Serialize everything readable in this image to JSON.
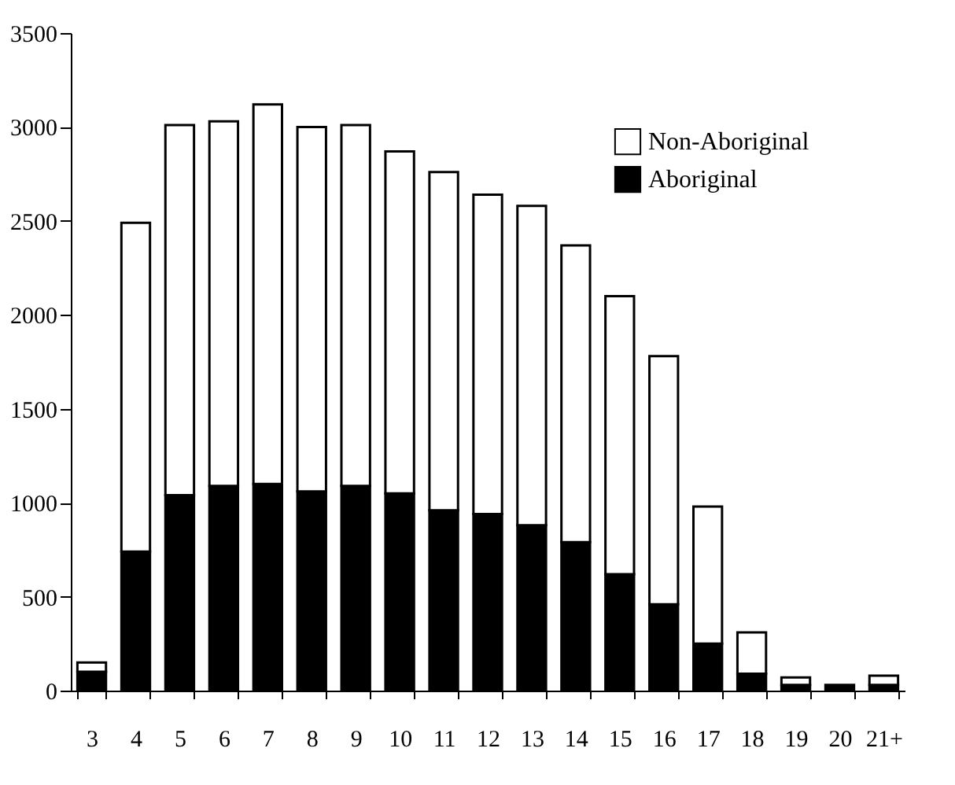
{
  "chart_data": {
    "type": "bar",
    "stacked": true,
    "categories": [
      "3",
      "4",
      "5",
      "6",
      "7",
      "8",
      "9",
      "10",
      "11",
      "12",
      "13",
      "14",
      "15",
      "16",
      "17",
      "18",
      "19",
      "20",
      "21+"
    ],
    "series": [
      {
        "name": "Aboriginal",
        "color": "#000000",
        "values": [
          100,
          740,
          1040,
          1090,
          1100,
          1060,
          1090,
          1050,
          960,
          940,
          880,
          790,
          620,
          460,
          250,
          90,
          30,
          30,
          30
        ]
      },
      {
        "name": "Non-Aboriginal",
        "color": "#ffffff",
        "values": [
          50,
          1750,
          1970,
          1940,
          2020,
          1940,
          1920,
          1820,
          1800,
          1700,
          1700,
          1580,
          1480,
          1320,
          730,
          220,
          40,
          null,
          50
        ]
      }
    ],
    "ylim": [
      0,
      3500
    ],
    "yticks": [
      0,
      500,
      1000,
      1500,
      2000,
      2500,
      3000,
      3500
    ],
    "grid": false,
    "legend": "top right"
  }
}
